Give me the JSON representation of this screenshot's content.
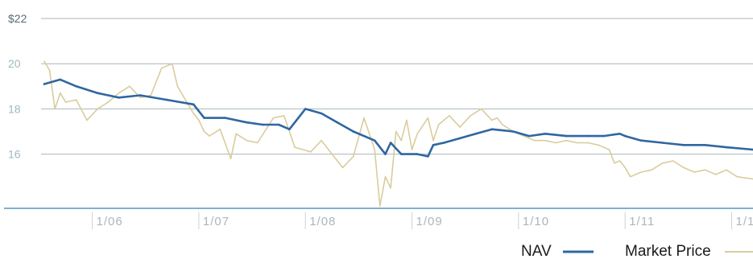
{
  "chart_data": {
    "type": "line",
    "ylim": [
      13.6,
      22
    ],
    "y_ticks": [
      {
        "value": 22,
        "label": "$22"
      },
      {
        "value": 20,
        "label": "20"
      },
      {
        "value": 18,
        "label": "18"
      },
      {
        "value": 16,
        "label": "16"
      }
    ],
    "x_range": [
      2005.3,
      2011.95
    ],
    "x_ticks": [
      {
        "value": 2005.75,
        "label": "1/06"
      },
      {
        "value": 2006.75,
        "label": "1/07"
      },
      {
        "value": 2007.75,
        "label": "1/08"
      },
      {
        "value": 2008.75,
        "label": "1/09"
      },
      {
        "value": 2009.75,
        "label": "1/10"
      },
      {
        "value": 2010.75,
        "label": "1/11"
      },
      {
        "value": 2011.75,
        "label": "1/1"
      }
    ],
    "grid": "horizontal",
    "legend_position": "bottom-right",
    "series": [
      {
        "name": "NAV",
        "color": "#2f67a1",
        "x": [
          2005.3,
          2005.45,
          2005.6,
          2005.8,
          2006.0,
          2006.2,
          2006.45,
          2006.7,
          2006.8,
          2007.0,
          2007.2,
          2007.35,
          2007.5,
          2007.6,
          2007.75,
          2007.9,
          2008.05,
          2008.2,
          2008.4,
          2008.5,
          2008.55,
          2008.65,
          2008.8,
          2008.9,
          2008.95,
          2009.05,
          2009.2,
          2009.35,
          2009.5,
          2009.7,
          2009.85,
          2010.0,
          2010.2,
          2010.4,
          2010.55,
          2010.7,
          2010.75,
          2010.9,
          2011.1,
          2011.3,
          2011.5,
          2011.7,
          2011.95
        ],
        "values": [
          19.1,
          19.3,
          19.0,
          18.7,
          18.5,
          18.6,
          18.4,
          18.2,
          17.6,
          17.6,
          17.4,
          17.3,
          17.3,
          17.1,
          18.0,
          17.8,
          17.4,
          17.0,
          16.6,
          16.0,
          16.5,
          16.0,
          16.0,
          15.9,
          16.4,
          16.5,
          16.7,
          16.9,
          17.1,
          17.0,
          16.8,
          16.9,
          16.8,
          16.8,
          16.8,
          16.9,
          16.8,
          16.6,
          16.5,
          16.4,
          16.4,
          16.3,
          16.2
        ]
      },
      {
        "name": "Market Price",
        "color": "#d9cc9d",
        "x": [
          2005.3,
          2005.35,
          2005.4,
          2005.45,
          2005.5,
          2005.6,
          2005.7,
          2005.8,
          2005.9,
          2006.0,
          2006.1,
          2006.2,
          2006.3,
          2006.4,
          2006.5,
          2006.55,
          2006.6,
          2006.65,
          2006.7,
          2006.75,
          2006.8,
          2006.85,
          2006.95,
          2007.05,
          2007.1,
          2007.2,
          2007.3,
          2007.45,
          2007.55,
          2007.65,
          2007.8,
          2007.9,
          2008.0,
          2008.1,
          2008.2,
          2008.3,
          2008.4,
          2008.45,
          2008.5,
          2008.55,
          2008.6,
          2008.65,
          2008.7,
          2008.75,
          2008.8,
          2008.9,
          2008.95,
          2009.0,
          2009.1,
          2009.2,
          2009.3,
          2009.4,
          2009.5,
          2009.55,
          2009.6,
          2009.7,
          2009.8,
          2009.9,
          2010.0,
          2010.1,
          2010.2,
          2010.3,
          2010.4,
          2010.5,
          2010.6,
          2010.65,
          2010.7,
          2010.75,
          2010.8,
          2010.9,
          2011.0,
          2011.1,
          2011.2,
          2011.3,
          2011.4,
          2011.5,
          2011.6,
          2011.7,
          2011.8,
          2011.95
        ],
        "values": [
          20.1,
          19.7,
          18.0,
          18.7,
          18.3,
          18.4,
          17.5,
          18.0,
          18.3,
          18.7,
          19.0,
          18.5,
          18.6,
          19.8,
          20.0,
          19.0,
          18.6,
          18.2,
          17.8,
          17.5,
          17.0,
          16.8,
          17.1,
          15.8,
          16.9,
          16.6,
          16.5,
          17.6,
          17.7,
          16.3,
          16.1,
          16.6,
          16.0,
          15.4,
          15.9,
          17.6,
          16.2,
          13.7,
          15.0,
          14.5,
          17.0,
          16.6,
          17.5,
          16.2,
          16.9,
          17.6,
          16.6,
          17.3,
          17.7,
          17.2,
          17.7,
          18.0,
          17.5,
          17.6,
          17.3,
          17.0,
          16.8,
          16.6,
          16.6,
          16.5,
          16.6,
          16.5,
          16.5,
          16.4,
          16.2,
          15.6,
          15.7,
          15.4,
          15.0,
          15.2,
          15.3,
          15.6,
          15.7,
          15.4,
          15.2,
          15.3,
          15.1,
          15.3,
          15.0,
          14.9
        ]
      }
    ]
  }
}
